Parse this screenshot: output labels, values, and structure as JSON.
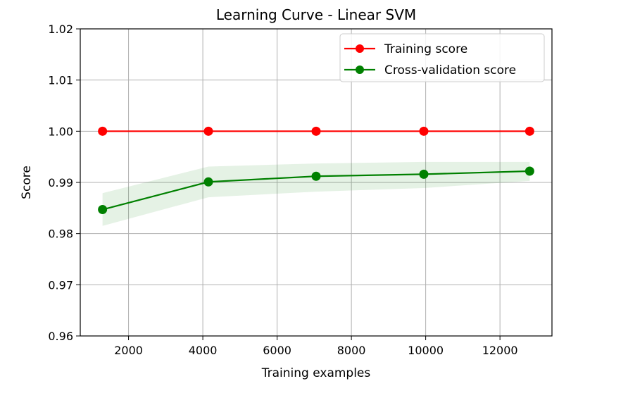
{
  "chart_data": {
    "type": "line",
    "title": "Learning Curve - Linear SVM",
    "xlabel": "Training examples",
    "ylabel": "Score",
    "xlim": [
      700,
      13400
    ],
    "ylim": [
      0.96,
      1.02
    ],
    "xticks": [
      2000,
      4000,
      6000,
      8000,
      10000,
      12000
    ],
    "yticks": [
      0.96,
      0.97,
      0.98,
      0.99,
      1.0,
      1.01,
      1.02
    ],
    "ytick_labels": [
      "0.96",
      "0.97",
      "0.98",
      "0.99",
      "1.00",
      "1.01",
      "1.02"
    ],
    "grid": true,
    "legend_position": "top-right",
    "x": [
      1300,
      4150,
      7050,
      9950,
      12800
    ],
    "series": [
      {
        "name": "Training score",
        "color": "#ff0000",
        "values": [
          1.0,
          1.0,
          1.0,
          1.0,
          1.0
        ],
        "band_lower": [
          1.0,
          1.0,
          1.0,
          1.0,
          1.0
        ],
        "band_upper": [
          1.0,
          1.0,
          1.0,
          1.0,
          1.0
        ]
      },
      {
        "name": "Cross-validation score",
        "color": "#008000",
        "values": [
          0.9847,
          0.9901,
          0.9912,
          0.9916,
          0.9922
        ],
        "band_lower": [
          0.9815,
          0.9871,
          0.9882,
          0.9889,
          0.9903
        ],
        "band_upper": [
          0.9879,
          0.9931,
          0.9937,
          0.994,
          0.994
        ]
      }
    ]
  }
}
